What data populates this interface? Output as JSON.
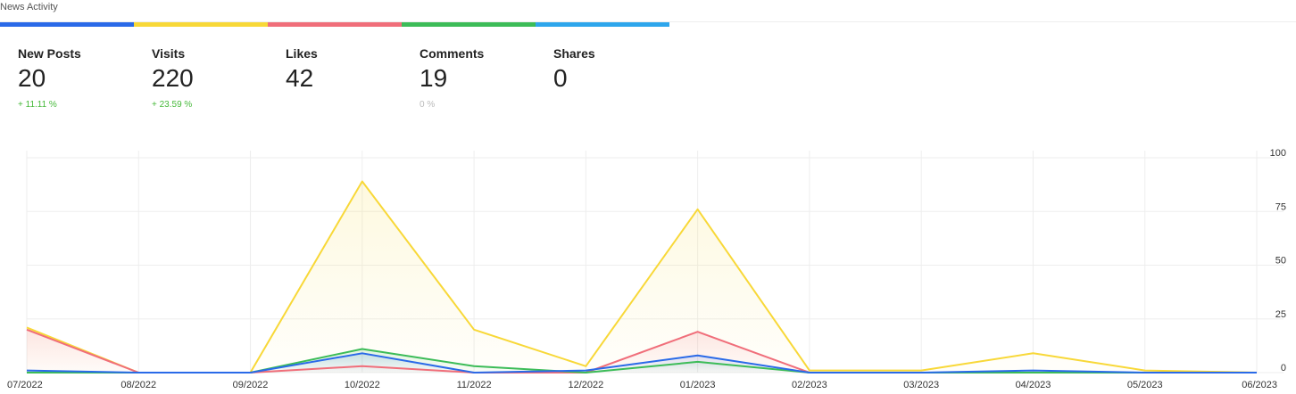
{
  "widget": {
    "title": "News Activity"
  },
  "colors": {
    "new_posts": "#2a6ae8",
    "visits": "#f8d838",
    "likes": "#f06e7a",
    "comments": "#3cbc58",
    "shares": "#2ea6ec"
  },
  "stats": [
    {
      "label": "New Posts",
      "value": "20",
      "change": "+ 11.11 %",
      "change_color": "#46b93a"
    },
    {
      "label": "Visits",
      "value": "220",
      "change": "+ 23.59 %",
      "change_color": "#46b93a"
    },
    {
      "label": "Likes",
      "value": "42",
      "change": "",
      "change_color": "#46b93a"
    },
    {
      "label": "Comments",
      "value": "19",
      "change": "0 %",
      "change_color": "#bbbbbb"
    },
    {
      "label": "Shares",
      "value": "0",
      "change": "",
      "change_color": "#bbbbbb"
    }
  ],
  "chart_data": {
    "type": "line",
    "x": [
      "07/2022",
      "08/2022",
      "09/2022",
      "10/2022",
      "11/2022",
      "12/2022",
      "01/2023",
      "02/2023",
      "03/2023",
      "04/2023",
      "05/2023",
      "06/2023"
    ],
    "ylim": [
      0,
      100
    ],
    "y_ticks": [
      "100",
      "75",
      "50",
      "25",
      "0"
    ],
    "y_axis_position": "right",
    "grid": true,
    "series": [
      {
        "key": "visits",
        "color": "#f8d838",
        "values": [
          21,
          0,
          0,
          89,
          20,
          3,
          76,
          1,
          1,
          9,
          1,
          0
        ]
      },
      {
        "key": "likes",
        "color": "#f06e7a",
        "values": [
          20,
          0,
          0,
          3,
          0,
          0,
          19,
          0,
          0,
          0,
          0,
          0
        ]
      },
      {
        "key": "comments",
        "color": "#3cbc58",
        "values": [
          0,
          0,
          0,
          11,
          3,
          0,
          5,
          0,
          0,
          0,
          0,
          0
        ]
      },
      {
        "key": "new_posts",
        "color": "#2a6ae8",
        "values": [
          1,
          0,
          0,
          9,
          0,
          1,
          8,
          0,
          0,
          1,
          0,
          0
        ]
      }
    ]
  }
}
